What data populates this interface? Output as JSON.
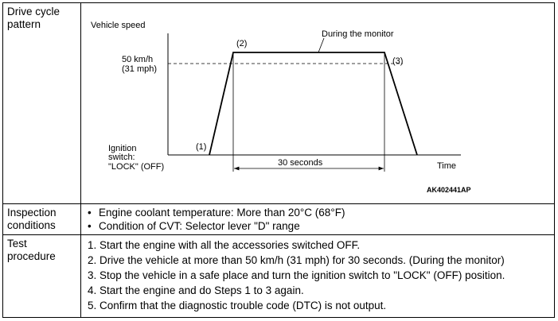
{
  "rows": {
    "drive_cycle": {
      "label_line1": "Drive cycle",
      "label_line2": "pattern"
    },
    "inspection": {
      "label_line1": "Inspection",
      "label_line2": "conditions",
      "items": [
        "Engine coolant temperature: More than 20°C (68°F)",
        "Condition of CVT: Selector lever \"D\" range"
      ]
    },
    "test": {
      "label_line1": "Test",
      "label_line2": "procedure",
      "steps": [
        "1. Start the engine with all the accessories switched OFF.",
        "2. Drive the vehicle at more than 50 km/h (31 mph) for 30 seconds. (During the monitor)",
        "3. Stop the vehicle in a safe place and turn the ignition switch to \"LOCK\" (OFF) position.",
        "4. Start the engine and do Steps 1 to 3 again.",
        "5. Confirm that the diagnostic trouble code (DTC) is not output."
      ]
    }
  },
  "diagram": {
    "y_axis_label": "Vehicle speed",
    "x_axis_label": "Time",
    "speed_label_kmh": "50 km/h",
    "speed_label_mph": "(31 mph)",
    "ignition_line1": "Ignition",
    "ignition_line2": "switch:",
    "ignition_line3": "\"LOCK\" (OFF)",
    "point1": "(1)",
    "point2": "(2)",
    "point3": "(3)",
    "monitor_label": "During the monitor",
    "duration_label": "30 seconds",
    "figure_code": "AK402441AP"
  }
}
